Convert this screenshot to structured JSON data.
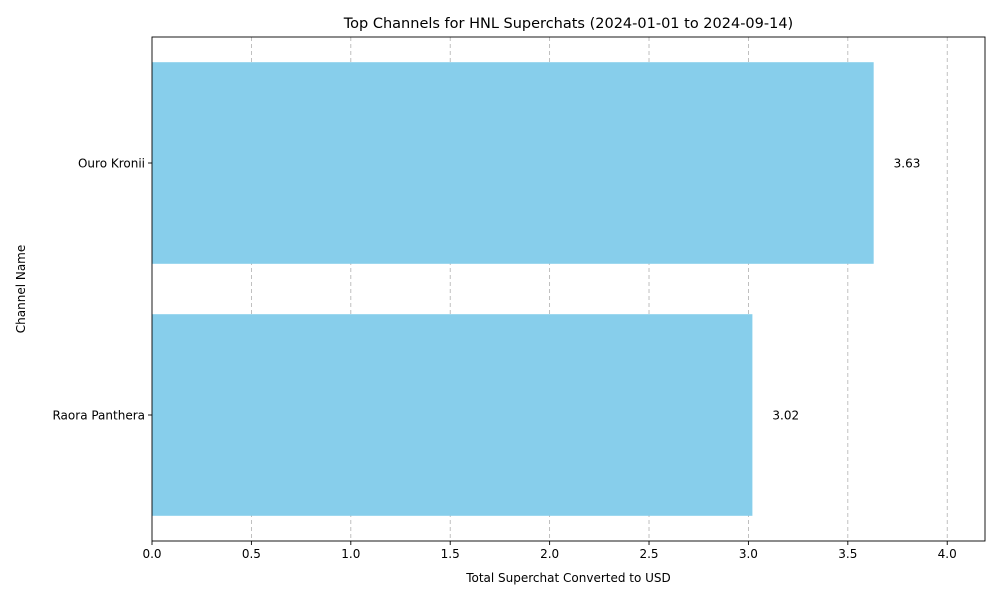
{
  "chart_data": {
    "type": "bar",
    "orientation": "horizontal",
    "title": "Top Channels for HNL Superchats (2024-01-01 to 2024-09-14)",
    "xlabel": "Total Superchat Converted to USD",
    "ylabel": "Channel Name",
    "categories": [
      "Ouro Kronii",
      "Raora Panthera"
    ],
    "values": [
      3.63,
      3.02
    ],
    "data_labels": [
      "3.63",
      "3.02"
    ],
    "xlim": [
      0,
      4.19
    ],
    "xticks": [
      0.0,
      0.5,
      1.0,
      1.5,
      2.0,
      2.5,
      3.0,
      3.5,
      4.0
    ],
    "xtick_labels": [
      "0.0",
      "0.5",
      "1.0",
      "1.5",
      "2.0",
      "2.5",
      "3.0",
      "3.5",
      "4.0"
    ],
    "grid": "x-axis, dashed",
    "legend": "none",
    "bar_color": "#87CEEB"
  }
}
